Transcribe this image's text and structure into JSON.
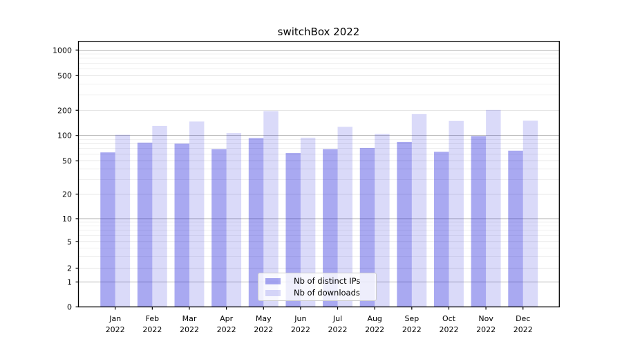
{
  "chart_data": {
    "type": "bar",
    "title": "switchBox 2022",
    "categories": [
      "Jan",
      "Feb",
      "Mar",
      "Apr",
      "May",
      "Jun",
      "Jul",
      "Aug",
      "Sep",
      "Oct",
      "Nov",
      "Dec"
    ],
    "x_year_label": "2022",
    "series": [
      {
        "name": "Nb of distinct IPs",
        "color": "#0a0ad7",
        "opacity": 0.35,
        "values": [
          63,
          82,
          80,
          69,
          93,
          62,
          69,
          71,
          84,
          64,
          98,
          66
        ]
      },
      {
        "name": "Nb of downloads",
        "color": "#0a0ad7",
        "opacity": 0.15,
        "values": [
          102,
          130,
          147,
          107,
          195,
          94,
          127,
          104,
          180,
          149,
          202,
          150
        ]
      }
    ],
    "xlabel": "",
    "ylabel": "",
    "yticks": [
      0,
      1,
      2,
      5,
      10,
      20,
      50,
      100,
      200,
      500,
      1000
    ],
    "ylim": [
      0,
      1242
    ],
    "yscale": "logarithmic above 1, linear between 0 and 1",
    "grid": {
      "horizontal_major": true,
      "horizontal_minor": true,
      "vertical": false
    },
    "legend_position": "lower center"
  }
}
